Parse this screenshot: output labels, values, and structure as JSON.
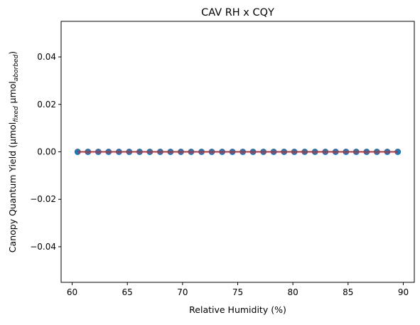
{
  "chart_data": {
    "type": "scatter",
    "title": "CAV RH x CQY",
    "xlabel": "Relative Humidity (%)",
    "ylabel": {
      "main": "Canopy Quantum Yield (",
      "unit1": "μmol",
      "sub1": "fixed",
      "unit2": " μmol",
      "sub2": "aborbed",
      "close": ")"
    },
    "xlim": [
      59.0,
      91.0
    ],
    "ylim": [
      -0.055,
      0.055
    ],
    "x_ticks": [
      60,
      65,
      70,
      75,
      80,
      85,
      90
    ],
    "x_tick_labels": [
      "60",
      "65",
      "70",
      "75",
      "80",
      "85",
      "90"
    ],
    "y_ticks": [
      -0.04,
      -0.02,
      0.0,
      0.02,
      0.04
    ],
    "y_tick_labels": [
      "−0.04",
      "−0.02",
      "0.00",
      "0.02",
      "0.04"
    ],
    "grid": false,
    "series": [
      {
        "values_x": [
          60.5,
          61.43,
          62.37,
          63.3,
          64.24,
          65.17,
          66.11,
          67.04,
          67.98,
          68.91,
          69.85,
          70.78,
          71.72,
          72.65,
          73.59,
          74.52,
          75.46,
          76.39,
          77.33,
          78.26,
          79.2,
          80.13,
          81.07,
          82.0,
          82.94,
          83.87,
          84.81,
          85.74,
          86.68,
          87.61,
          88.55,
          89.5
        ],
        "values_y": [
          0,
          0,
          0,
          0,
          0,
          0,
          0,
          0,
          0,
          0,
          0,
          0,
          0,
          0,
          0,
          0,
          0,
          0,
          0,
          0,
          0,
          0,
          0,
          0,
          0,
          0,
          0,
          0,
          0,
          0,
          0,
          0
        ],
        "color": "#1f77b4"
      }
    ],
    "fit_line": {
      "x": [
        60.5,
        89.5
      ],
      "y": [
        0,
        0
      ],
      "color": "#d62728"
    }
  }
}
